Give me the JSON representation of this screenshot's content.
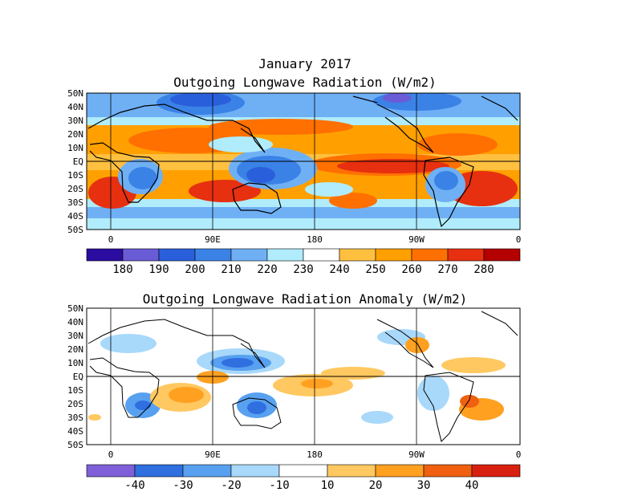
{
  "header": {
    "month": "January 2017",
    "top_title": "Outgoing Longwave Radiation (W/m2)",
    "bottom_title": "Outgoing Longwave Radiation Anomaly (W/m2)"
  },
  "lat_labels": [
    "50N",
    "40N",
    "30N",
    "20N",
    "10N",
    "EQ",
    "10S",
    "20S",
    "30S",
    "40S",
    "50S"
  ],
  "lon_labels": [
    "0",
    "90E",
    "180",
    "90W",
    "0"
  ],
  "top_colorbar": {
    "colors": [
      "#2a0ca0",
      "#6a5bd6",
      "#2a5fdc",
      "#3b82e6",
      "#6fb0f5",
      "#b0ecfb",
      "#ffffff",
      "#ffc040",
      "#ffa000",
      "#ff7000",
      "#e63010",
      "#b40000"
    ],
    "labels": [
      "180",
      "190",
      "200",
      "210",
      "220",
      "230",
      "240",
      "250",
      "260",
      "270",
      "280"
    ]
  },
  "bottom_colorbar": {
    "colors": [
      "#8060d8",
      "#2f6fe0",
      "#58a0f0",
      "#a8d8fa",
      "#ffffff",
      "#ffc860",
      "#ffa020",
      "#f06010",
      "#d82010"
    ],
    "labels": [
      "-40",
      "-30",
      "-20",
      "-10",
      "10",
      "20",
      "30",
      "40"
    ]
  },
  "colors": {
    "land_outline": "#000000",
    "warm_high": "#e63010",
    "cool_low": "#2a5fdc"
  }
}
